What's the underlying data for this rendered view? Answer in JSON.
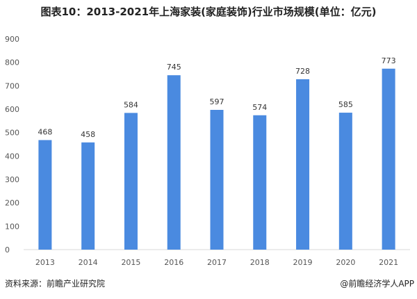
{
  "chart_data": {
    "type": "bar",
    "title": "图表10：2013-2021年上海家装(家庭装饰)行业市场规模(单位：亿元)",
    "categories": [
      "2013",
      "2014",
      "2015",
      "2016",
      "2017",
      "2018",
      "2019",
      "2020",
      "2021"
    ],
    "values": [
      468,
      458,
      584,
      745,
      597,
      574,
      728,
      585,
      773
    ],
    "xlabel": "",
    "ylabel": "",
    "ylim": [
      0,
      900
    ],
    "yticks": [
      0,
      100,
      200,
      300,
      400,
      500,
      600,
      700,
      800,
      900
    ],
    "grid": false,
    "data_labels": true,
    "bar_color": "#4A8AE0"
  },
  "footer": {
    "source": "资料来源：前瞻产业研究院",
    "brand": "@前瞻经济学人APP"
  }
}
